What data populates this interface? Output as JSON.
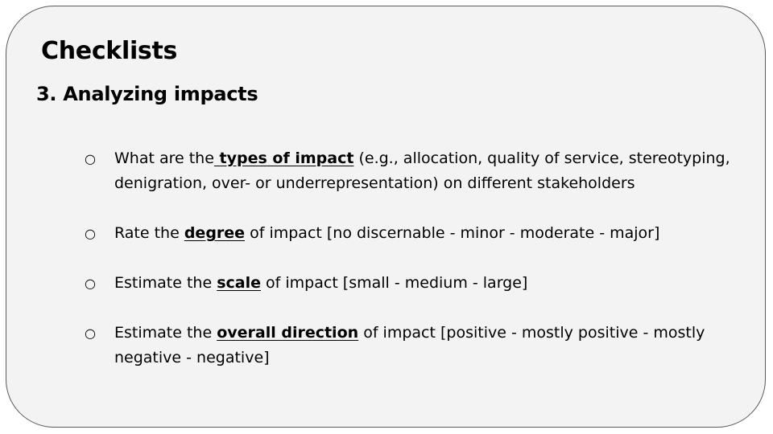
{
  "slide": {
    "title": "Checklists",
    "subtitle": "3. Analyzing impacts",
    "bullet_glyph": "○",
    "items": [
      {
        "before": "What are the",
        "keyword": " types of impact",
        "after": " (e.g., allocation, quality of service, stereotyping, denigration, over- or underrepresentation) on different stakeholders"
      },
      {
        "before": "Rate the ",
        "keyword": "degree",
        "after": " of impact [no discernable - minor - moderate - major]"
      },
      {
        "before": "Estimate the ",
        "keyword": "scale",
        "after": " of impact [small - medium - large]"
      },
      {
        "before": "Estimate the ",
        "keyword": "overall direction",
        "after": " of impact [positive - mostly positive - mostly negative - negative]"
      }
    ]
  }
}
